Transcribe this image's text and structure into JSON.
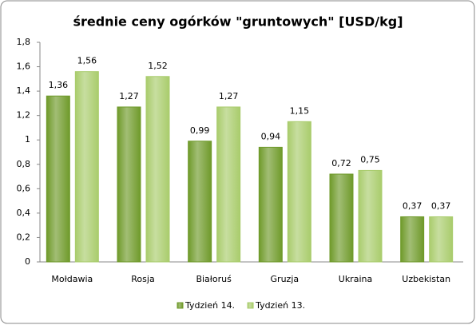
{
  "chart_data": {
    "type": "bar",
    "title": "średnie ceny ogórków \"gruntowych\" [USD/kg]",
    "categories": [
      "Mołdawia",
      "Rosja",
      "Białoruś",
      "Gruzja",
      "Ukraina",
      "Uzbekistan"
    ],
    "series": [
      {
        "name": "Tydzień 14.",
        "color": "#6f9a2a",
        "values": [
          1.36,
          1.27,
          0.99,
          0.94,
          0.72,
          0.37
        ],
        "value_labels": [
          "1,36",
          "1,27",
          "0,99",
          "0,94",
          "0,72",
          "0,37"
        ]
      },
      {
        "name": "Tydzień 13.",
        "color": "#a9cc6c",
        "values": [
          1.56,
          1.52,
          1.27,
          1.15,
          0.75,
          0.37
        ],
        "value_labels": [
          "1,56",
          "1,52",
          "1,27",
          "1,15",
          "0,75",
          "0,37"
        ]
      }
    ],
    "ylim": [
      0,
      1.8
    ],
    "yticks": [
      0,
      {
        "value": 0.2,
        "label": "0,2"
      },
      {
        "value": 0.4,
        "label": "0,4"
      },
      {
        "value": 0.6,
        "label": "0,6"
      },
      {
        "value": 0.8,
        "label": "0,8"
      },
      1,
      {
        "value": 1.2,
        "label": "1,2"
      },
      {
        "value": 1.4,
        "label": "1,4"
      },
      {
        "value": 1.6,
        "label": "1,6"
      },
      {
        "value": 1.8,
        "label": "1,8"
      }
    ],
    "legend": "bottom"
  }
}
